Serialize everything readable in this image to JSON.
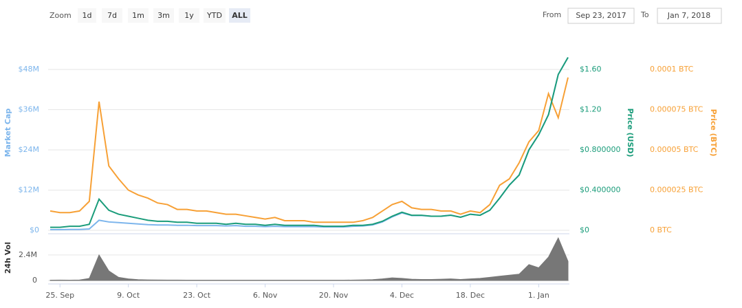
{
  "controls": {
    "zoom_label": "Zoom",
    "zoom_buttons": [
      "1d",
      "7d",
      "1m",
      "3m",
      "1y",
      "YTD",
      "ALL"
    ],
    "selected": "ALL",
    "from_label": "From",
    "from_value": "Sep 23, 2017",
    "to_label": "To",
    "to_value": "Jan 7, 2018"
  },
  "chart_data": [
    {
      "type": "line",
      "x": [
        "23. Sep",
        "25. Sep",
        "27. Sep",
        "29. Sep",
        "1. Oct",
        "3. Oct",
        "5. Oct",
        "7. Oct",
        "9. Oct",
        "11. Oct",
        "13. Oct",
        "15. Oct",
        "17. Oct",
        "19. Oct",
        "21. Oct",
        "23. Oct",
        "25. Oct",
        "27. Oct",
        "29. Oct",
        "31. Oct",
        "2. Nov",
        "4. Nov",
        "6. Nov",
        "8. Nov",
        "10. Nov",
        "12. Nov",
        "14. Nov",
        "16. Nov",
        "18. Nov",
        "20. Nov",
        "22. Nov",
        "24. Nov",
        "26. Nov",
        "28. Nov",
        "30. Nov",
        "2. Dec",
        "4. Dec",
        "6. Dec",
        "8. Dec",
        "10. Dec",
        "12. Dec",
        "14. Dec",
        "16. Dec",
        "18. Dec",
        "20. Dec",
        "22. Dec",
        "24. Dec",
        "26. Dec",
        "28. Dec",
        "30. Dec",
        "1. Jan",
        "3. Jan",
        "5. Jan",
        "7. Jan"
      ],
      "xticks": [
        "25. Sep",
        "9. Oct",
        "23. Oct",
        "6. Nov",
        "20. Nov",
        "4. Dec",
        "18. Dec",
        "1. Jan"
      ],
      "ylabel": "Market Cap",
      "y2label": "Price (USD)",
      "y3label": "Price (BTC)",
      "ylim": [
        0,
        60000000
      ],
      "yticks": [
        {
          "value": 0,
          "label": "$0"
        },
        {
          "value": 12000000,
          "label": "$12M"
        },
        {
          "value": 24000000,
          "label": "$24M"
        },
        {
          "value": 36000000,
          "label": "$36M"
        },
        {
          "value": 48000000,
          "label": "$48M"
        }
      ],
      "y2lim": [
        0,
        2
      ],
      "y2ticks": [
        {
          "value": 0,
          "label": "$0"
        },
        {
          "value": 0.4,
          "label": "$0.400000"
        },
        {
          "value": 0.8,
          "label": "$0.800000"
        },
        {
          "value": 1.2,
          "label": "$1.20"
        },
        {
          "value": 1.6,
          "label": "$1.60"
        }
      ],
      "y3lim": [
        0,
        0.000125
      ],
      "y3ticks": [
        {
          "value": 0,
          "label": "0 BTC"
        },
        {
          "value": 2.5e-05,
          "label": "0.000025 BTC"
        },
        {
          "value": 5e-05,
          "label": "0.00005 BTC"
        },
        {
          "value": 7.5e-05,
          "label": "0.000075 BTC"
        },
        {
          "value": 0.0001,
          "label": "0.0001 BTC"
        }
      ],
      "grid": true,
      "series": [
        {
          "name": "Market Cap",
          "axis": "y",
          "color": "#7cb5ec",
          "values": [
            200000,
            200000,
            250000,
            250000,
            400000,
            3000000,
            2500000,
            2300000,
            2100000,
            1900000,
            1700000,
            1600000,
            1600000,
            1500000,
            1500000,
            1400000,
            1400000,
            1400000,
            1300000,
            1400000,
            1200000,
            1200000,
            1100000,
            1200000,
            1100000,
            1100000,
            1100000,
            1100000,
            1000000,
            1000000,
            1000000,
            1200000,
            1300000,
            1600000,
            2500000,
            4000000,
            5200000,
            4400000,
            4400000,
            4200000,
            4200000,
            4500000,
            3900000,
            4800000,
            4500000,
            6000000,
            9600000,
            13500000,
            16500000,
            24000000,
            28500000,
            34500000,
            46500000,
            51600000
          ]
        },
        {
          "name": "Price (BTC)",
          "axis": "y3",
          "color": "#f7a035",
          "values": [
            1.2e-05,
            1.1e-05,
            1.1e-05,
            1.2e-05,
            1.8e-05,
            8e-05,
            4e-05,
            3.2e-05,
            2.5e-05,
            2.2e-05,
            2e-05,
            1.7e-05,
            1.6e-05,
            1.3e-05,
            1.3e-05,
            1.2e-05,
            1.2e-05,
            1.1e-05,
            1e-05,
            1e-05,
            9e-06,
            8e-06,
            7e-06,
            8e-06,
            6e-06,
            6e-06,
            6e-06,
            5e-06,
            5e-06,
            5e-06,
            5e-06,
            5e-06,
            6e-06,
            8e-06,
            1.2e-05,
            1.6e-05,
            1.8e-05,
            1.4e-05,
            1.3e-05,
            1.3e-05,
            1.2e-05,
            1.2e-05,
            1e-05,
            1.2e-05,
            1.1e-05,
            1.6e-05,
            2.8e-05,
            3.2e-05,
            4.2e-05,
            5.5e-05,
            6.2e-05,
            8.5e-05,
            7e-05,
            9.5e-05
          ]
        },
        {
          "name": "Price (USD)",
          "axis": "y2",
          "color": "#1a9c7a",
          "values": [
            0.03,
            0.03,
            0.04,
            0.04,
            0.06,
            0.31,
            0.2,
            0.16,
            0.14,
            0.12,
            0.1,
            0.09,
            0.09,
            0.08,
            0.08,
            0.07,
            0.07,
            0.07,
            0.06,
            0.07,
            0.06,
            0.06,
            0.05,
            0.06,
            0.05,
            0.05,
            0.05,
            0.05,
            0.04,
            0.04,
            0.04,
            0.05,
            0.05,
            0.06,
            0.09,
            0.14,
            0.18,
            0.15,
            0.15,
            0.14,
            0.14,
            0.15,
            0.13,
            0.16,
            0.15,
            0.2,
            0.32,
            0.45,
            0.55,
            0.8,
            0.95,
            1.15,
            1.55,
            1.72
          ]
        }
      ]
    },
    {
      "type": "area",
      "ylabel": "24h Vol",
      "color": "#777777",
      "ylim": [
        0,
        4200000
      ],
      "yticks": [
        0,
        {
          "value": 2400000,
          "label": "2.4M"
        }
      ],
      "values": [
        30000,
        40000,
        30000,
        50000,
        200000,
        2400000,
        900000,
        300000,
        150000,
        80000,
        60000,
        50000,
        40000,
        40000,
        30000,
        30000,
        30000,
        30000,
        30000,
        30000,
        30000,
        30000,
        30000,
        30000,
        30000,
        30000,
        30000,
        30000,
        30000,
        30000,
        30000,
        40000,
        60000,
        80000,
        150000,
        250000,
        200000,
        120000,
        100000,
        100000,
        120000,
        150000,
        100000,
        150000,
        200000,
        300000,
        400000,
        500000,
        600000,
        1500000,
        1200000,
        2200000,
        4000000,
        1800000
      ]
    }
  ]
}
